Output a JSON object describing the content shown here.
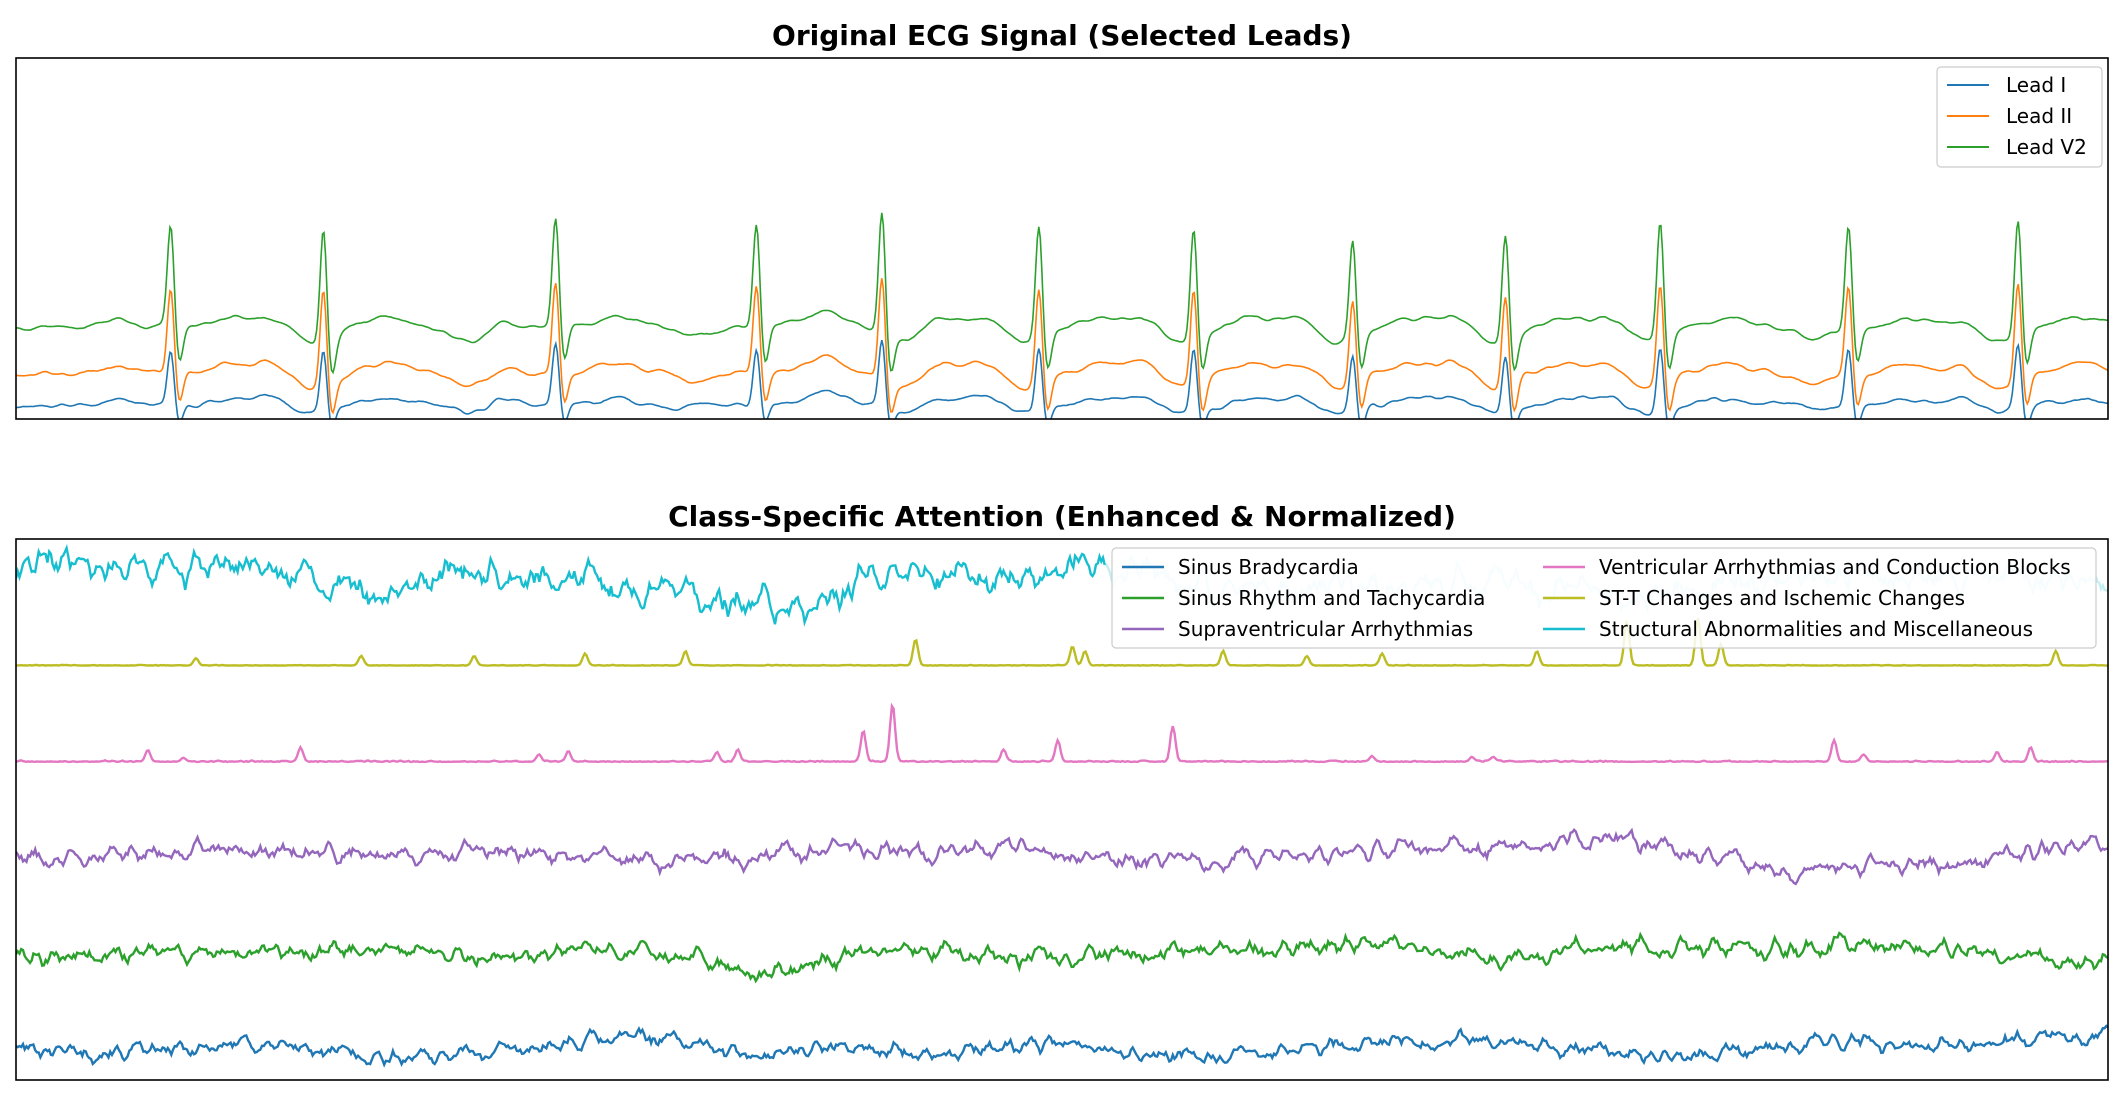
{
  "chart_data": [
    {
      "type": "line",
      "title": "Original ECG Signal (Selected Leads)",
      "xlabel": "",
      "ylabel": "",
      "axis_ticks": "hidden",
      "grid": false,
      "legend_position": "top-right",
      "beats": [
        0.074,
        0.147,
        0.258,
        0.354,
        0.414,
        0.489,
        0.563,
        0.639,
        0.712,
        0.786,
        0.876,
        0.957
      ],
      "beat_height": [
        0.82,
        0.93,
        0.89,
        0.85,
        1.0,
        0.92,
        0.92,
        0.81,
        0.86,
        0.96,
        0.84,
        0.93
      ],
      "series": [
        {
          "name": "Lead I",
          "color": "#1f77b4",
          "baseline": 0.85,
          "r_amp": 0.55
        },
        {
          "name": "Lead II",
          "color": "#ff7f0e",
          "baseline": 0.5,
          "r_amp": 0.85
        },
        {
          "name": "Lead V2",
          "color": "#2ca02c",
          "baseline": 0.0,
          "r_amp": 1.0
        }
      ]
    },
    {
      "type": "line",
      "title": "Class-Specific Attention (Enhanced & Normalized)",
      "xlabel": "",
      "ylabel": "",
      "axis_ticks": "hidden",
      "grid": false,
      "legend_position": "top-right",
      "legend_columns": 2,
      "series": [
        {
          "name": "Sinus Bradycardia",
          "color": "#1f77b4",
          "style": "noisy",
          "offset": 0.0,
          "amplitude": 0.22
        },
        {
          "name": "Sinus Rhythm and Tachycardia",
          "color": "#2ca02c",
          "style": "noisy",
          "offset": 0.87,
          "amplitude": 0.28
        },
        {
          "name": "Supraventricular Arrhythmias",
          "color": "#9467bd",
          "style": "noisy",
          "offset": 1.8,
          "amplitude": 0.25
        },
        {
          "name": "Ventricular Arrhythmias and Conduction Blocks",
          "color": "#e377c2",
          "style": "spiky",
          "offset": 2.66,
          "amplitude": 0.24,
          "peaks": [
            [
              0.063,
              0.05
            ],
            [
              0.08,
              0.015
            ],
            [
              0.136,
              0.06
            ],
            [
              0.25,
              0.03
            ],
            [
              0.264,
              0.04
            ],
            [
              0.335,
              0.04
            ],
            [
              0.345,
              0.05
            ],
            [
              0.405,
              0.13
            ],
            [
              0.419,
              0.24
            ],
            [
              0.472,
              0.05
            ],
            [
              0.498,
              0.09
            ],
            [
              0.553,
              0.15
            ],
            [
              0.648,
              0.02
            ],
            [
              0.696,
              0.02
            ],
            [
              0.706,
              0.02
            ],
            [
              0.869,
              0.09
            ],
            [
              0.883,
              0.03
            ],
            [
              0.947,
              0.04
            ],
            [
              0.963,
              0.06
            ]
          ]
        },
        {
          "name": "ST-T Changes and Ischemic Changes",
          "color": "#bcbd22",
          "style": "spiky",
          "offset": 3.55,
          "amplitude": 0.12,
          "peaks": [
            [
              0.086,
              0.03
            ],
            [
              0.165,
              0.04
            ],
            [
              0.219,
              0.04
            ],
            [
              0.272,
              0.05
            ],
            [
              0.32,
              0.06
            ],
            [
              0.43,
              0.11
            ],
            [
              0.505,
              0.08
            ],
            [
              0.511,
              0.06
            ],
            [
              0.577,
              0.06
            ],
            [
              0.617,
              0.04
            ],
            [
              0.653,
              0.05
            ],
            [
              0.727,
              0.06
            ],
            [
              0.77,
              0.19
            ],
            [
              0.804,
              0.2
            ],
            [
              0.815,
              0.09
            ],
            [
              0.975,
              0.06
            ]
          ]
        },
        {
          "name": "Structural Abnormalities and Miscellaneous",
          "color": "#17becf",
          "style": "noisy",
          "offset": 4.33,
          "amplitude": 0.4,
          "fade_from": 0.52
        }
      ]
    }
  ]
}
